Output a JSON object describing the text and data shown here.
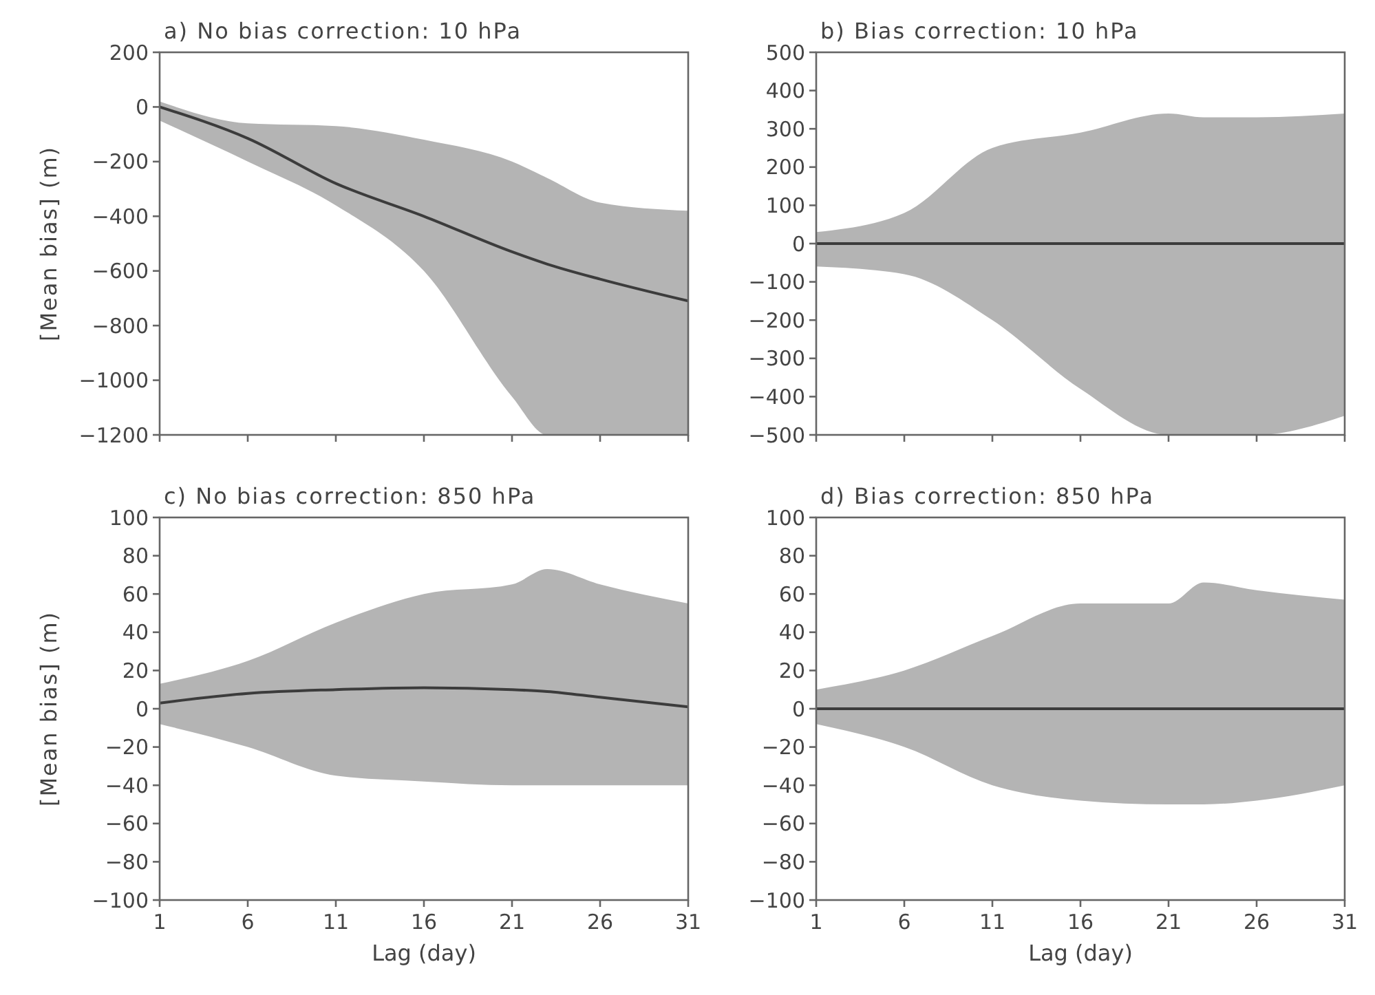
{
  "chart_data": [
    {
      "type": "line",
      "title": "a) No bias correction: 10 hPa",
      "ylabel": "[Mean bias] (m)",
      "x": [
        1,
        6,
        11,
        16,
        21,
        23,
        26,
        31
      ],
      "xlim": [
        1,
        31
      ],
      "xticks": [
        1,
        6,
        11,
        16,
        21,
        26,
        31
      ],
      "ylim": [
        -1200,
        200
      ],
      "yticks": [
        -1200,
        -1000,
        -800,
        -600,
        -400,
        -200,
        0,
        200
      ],
      "tick_labels": "y",
      "series": [
        {
          "color": "#3c3c3c",
          "values": [
            0,
            -115,
            -280,
            -400,
            -530,
            -575,
            -630,
            -710
          ],
          "lower": [
            -50,
            -200,
            -360,
            -600,
            -1060,
            -1200,
            -1200,
            -1200
          ],
          "upper": [
            20,
            -60,
            -70,
            -120,
            -200,
            -260,
            -350,
            -380
          ]
        }
      ]
    },
    {
      "type": "line",
      "title": "b) Bias correction: 10 hPa",
      "x": [
        1,
        6,
        11,
        16,
        21,
        23,
        26,
        31
      ],
      "xlim": [
        1,
        31
      ],
      "xticks": [
        1,
        6,
        11,
        16,
        21,
        26,
        31
      ],
      "ylim": [
        -500,
        500
      ],
      "yticks": [
        -500,
        -400,
        -300,
        -200,
        -100,
        0,
        100,
        200,
        300,
        400,
        500
      ],
      "tick_labels": "y",
      "series": [
        {
          "color": "#3c3c3c",
          "values": [
            0,
            0,
            0,
            0,
            0,
            0,
            0,
            0
          ],
          "lower": [
            -60,
            -80,
            -200,
            -380,
            -500,
            -500,
            -500,
            -450
          ],
          "upper": [
            30,
            80,
            250,
            290,
            340,
            330,
            330,
            340
          ]
        }
      ]
    },
    {
      "type": "line",
      "title": "c) No bias correction: 850 hPa",
      "ylabel": "[Mean bias] (m)",
      "xlabel": "Lag (day)",
      "x": [
        1,
        6,
        11,
        16,
        21,
        23,
        26,
        31
      ],
      "xlim": [
        1,
        31
      ],
      "xticks": [
        1,
        6,
        11,
        16,
        21,
        26,
        31
      ],
      "ylim": [
        -100,
        100
      ],
      "yticks": [
        -100,
        -80,
        -60,
        -40,
        -20,
        0,
        20,
        40,
        60,
        80,
        100
      ],
      "series": [
        {
          "color": "#3c3c3c",
          "values": [
            3,
            8,
            10,
            11,
            10,
            9,
            6,
            1
          ],
          "lower": [
            -8,
            -20,
            -35,
            -38,
            -40,
            -40,
            -40,
            -40
          ],
          "upper": [
            13,
            25,
            45,
            60,
            65,
            73,
            65,
            55
          ]
        }
      ]
    },
    {
      "type": "line",
      "title": "d) Bias correction: 850 hPa",
      "xlabel": "Lag (day)",
      "x": [
        1,
        6,
        11,
        16,
        21,
        23,
        26,
        31
      ],
      "xlim": [
        1,
        31
      ],
      "xticks": [
        1,
        6,
        11,
        16,
        21,
        26,
        31
      ],
      "ylim": [
        -100,
        100
      ],
      "yticks": [
        -100,
        -80,
        -60,
        -40,
        -20,
        0,
        20,
        40,
        60,
        80,
        100
      ],
      "series": [
        {
          "color": "#3c3c3c",
          "values": [
            0,
            0,
            0,
            0,
            0,
            0,
            0,
            0
          ],
          "lower": [
            -8,
            -20,
            -40,
            -48,
            -50,
            -50,
            -48,
            -40
          ],
          "upper": [
            10,
            20,
            38,
            55,
            55,
            66,
            62,
            57
          ]
        }
      ]
    }
  ]
}
